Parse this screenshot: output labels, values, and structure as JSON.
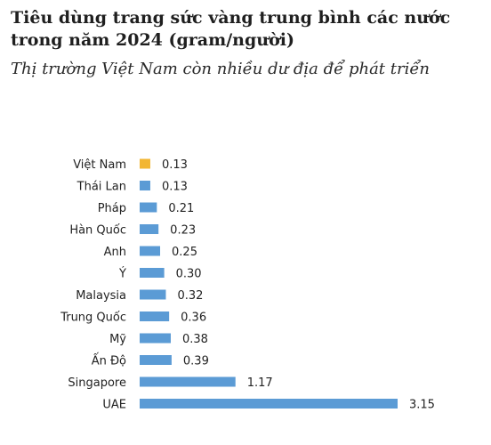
{
  "header": {
    "title": "Tiêu dùng trang sức vàng trung bình các nước trong năm 2024 (gram/người)",
    "subtitle": "Thị trường Việt Nam còn nhiều dư địa để phát triển"
  },
  "colors": {
    "highlight": "#f2b632",
    "default": "#5b9bd5"
  },
  "chart_data": {
    "type": "bar",
    "orientation": "horizontal",
    "title": "Tiêu dùng trang sức vàng trung bình các nước trong năm 2024 (gram/người)",
    "subtitle": "Thị trường Việt Nam còn nhiều dư địa để phát triển",
    "categories": [
      "Việt Nam",
      "Thái Lan",
      "Pháp",
      "Hàn Quốc",
      "Anh",
      "Ý",
      "Malaysia",
      "Trung Quốc",
      "Mỹ",
      "Ấn Độ",
      "Singapore",
      "UAE"
    ],
    "values": [
      0.13,
      0.13,
      0.21,
      0.23,
      0.25,
      0.3,
      0.32,
      0.36,
      0.38,
      0.39,
      1.17,
      3.15
    ],
    "data_labels": [
      "0.13",
      "0.13",
      "0.21",
      "0.23",
      "0.25",
      "0.30",
      "0.32",
      "0.36",
      "0.38",
      "0.39",
      "1.17",
      "3.15"
    ],
    "highlight_category": "Việt Nam",
    "xlim": [
      0,
      3.15
    ],
    "grid": false,
    "axis_lines": false,
    "legend": "none"
  }
}
